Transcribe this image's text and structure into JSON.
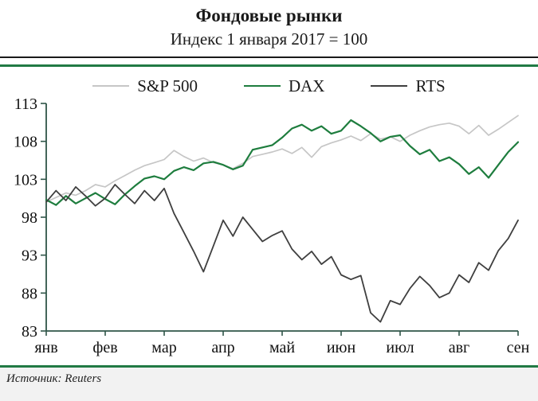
{
  "header": {
    "title": "Фондовые рынки",
    "subtitle": "Индекс 1 января 2017 = 100"
  },
  "footer": {
    "source": "Источник: Reuters"
  },
  "colors": {
    "accent_green": "#217a44",
    "rule_dark": "#1a1a1a",
    "axis": "#2f5548",
    "footer_bg": "#f2f2f2"
  },
  "chart_data": {
    "type": "line",
    "title": "Фондовые рынки",
    "subtitle": "Индекс 1 января 2017 = 100",
    "xlabel": "",
    "ylabel": "",
    "ylim": [
      83,
      113
    ],
    "y_ticks": [
      83,
      88,
      93,
      98,
      103,
      108,
      113
    ],
    "x_tick_labels": [
      "янв",
      "фев",
      "мар",
      "апр",
      "май",
      "июн",
      "июл",
      "авг",
      "сен"
    ],
    "points_per_month": 6,
    "grid": false,
    "legend_position": "top",
    "series": [
      {
        "name": "S&P 500",
        "color": "#c6c6c6",
        "width": 1.7,
        "values": [
          100.0,
          100.6,
          101.2,
          100.9,
          101.5,
          102.3,
          102.0,
          102.8,
          103.5,
          104.2,
          104.8,
          105.2,
          105.6,
          106.8,
          106.0,
          105.4,
          105.8,
          105.2,
          104.9,
          104.4,
          105.1,
          106.0,
          106.3,
          106.6,
          107.0,
          106.4,
          107.2,
          105.9,
          107.3,
          107.8,
          108.2,
          108.7,
          108.1,
          109.0,
          108.3,
          108.6,
          108.0,
          108.8,
          109.4,
          109.9,
          110.2,
          110.4,
          110.0,
          109.0,
          110.1,
          108.8,
          109.6,
          110.5,
          111.4
        ]
      },
      {
        "name": "DAX",
        "color": "#1e7d3e",
        "width": 2.2,
        "values": [
          100.3,
          99.6,
          100.8,
          99.8,
          100.5,
          101.2,
          100.4,
          99.7,
          101.0,
          102.1,
          103.1,
          103.4,
          103.0,
          104.1,
          104.6,
          104.2,
          105.1,
          105.3,
          104.9,
          104.3,
          104.8,
          106.9,
          107.2,
          107.5,
          108.5,
          109.7,
          110.2,
          109.4,
          110.0,
          109.0,
          109.4,
          110.8,
          110.0,
          109.1,
          108.0,
          108.6,
          108.8,
          107.4,
          106.3,
          106.9,
          105.4,
          105.9,
          105.0,
          103.7,
          104.6,
          103.2,
          104.9,
          106.6,
          107.9
        ]
      },
      {
        "name": "RTS",
        "color": "#3f3f3f",
        "width": 1.8,
        "values": [
          100.0,
          101.5,
          100.2,
          102.0,
          100.8,
          99.5,
          100.5,
          102.3,
          101.0,
          99.8,
          101.5,
          100.2,
          101.8,
          98.5,
          96.0,
          93.5,
          90.8,
          94.2,
          97.6,
          95.5,
          98.0,
          96.4,
          94.8,
          95.6,
          96.2,
          93.8,
          92.4,
          93.5,
          91.8,
          92.8,
          90.4,
          89.8,
          90.3,
          85.4,
          84.2,
          87.0,
          86.5,
          88.6,
          90.2,
          89.0,
          87.4,
          88.0,
          90.4,
          89.4,
          92.0,
          91.0,
          93.6,
          95.2,
          97.6
        ]
      }
    ]
  }
}
